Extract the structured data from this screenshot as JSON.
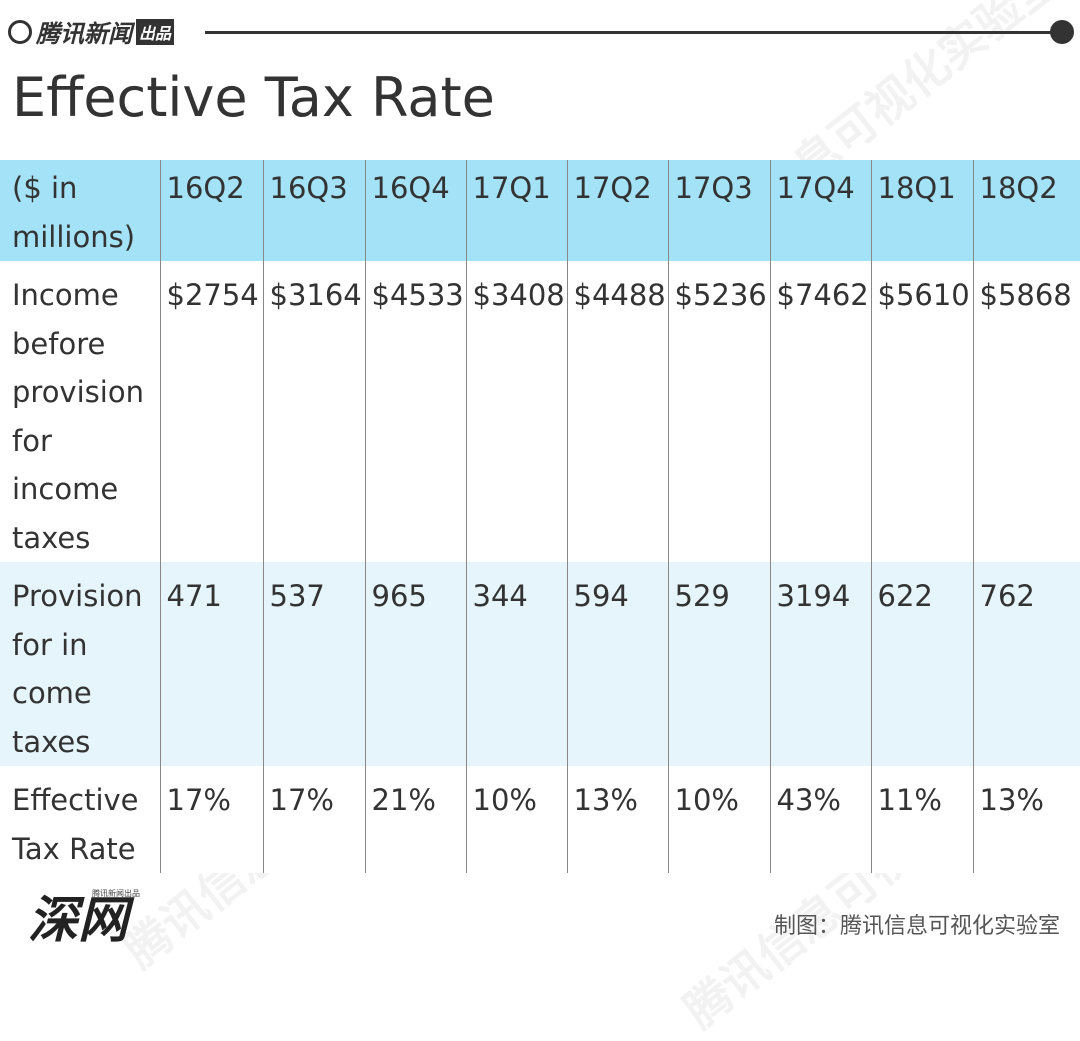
{
  "header": {
    "brand": "腾讯新闻",
    "brand_tag": "出品",
    "title": "Effective Tax Rate"
  },
  "table": {
    "columns": [
      "($ in millions)",
      "16Q2",
      "16Q3",
      "16Q4",
      "17Q1",
      "17Q2",
      "17Q3",
      "17Q4",
      "18Q1",
      "18Q2"
    ],
    "rows": [
      [
        "Income before provision for income taxes",
        "$2754",
        "$3164",
        "$4533",
        "$3408",
        "$4488",
        "$5236",
        "$7462",
        "$5610",
        "$5868"
      ],
      [
        "Provision for in come taxes",
        "471",
        "537",
        "965",
        "344",
        "594",
        "529",
        "3194",
        "622",
        "762"
      ],
      [
        "Effective Tax Rate",
        "17%",
        "17%",
        "21%",
        "10%",
        "13%",
        "10%",
        "43%",
        "11%",
        "13%"
      ]
    ]
  },
  "watermark": "腾讯信息可视化实验室",
  "footer": {
    "logo": "深网",
    "logo_sub": "腾讯新闻出品",
    "credit": "制图：腾讯信息可视化实验室"
  }
}
